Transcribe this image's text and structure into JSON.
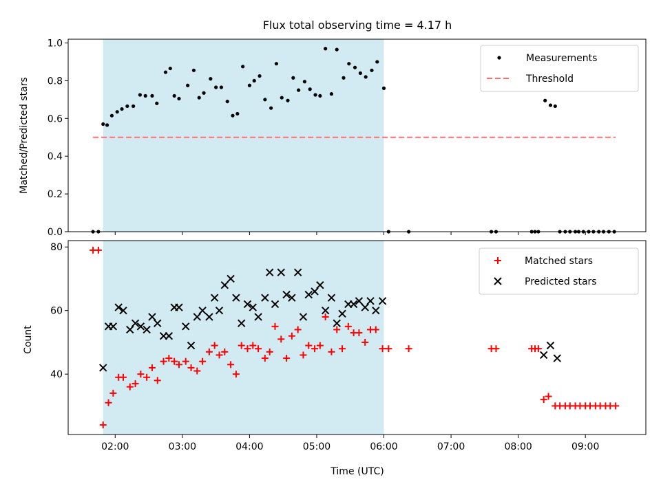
{
  "title": "Flux total observing time = 4.17 h",
  "colors": {
    "shade": "#add8e6",
    "threshold": "#ff6f6f",
    "matched": "#ff0000",
    "predicted": "#000000",
    "measurement": "#000000"
  },
  "chart_data": [
    {
      "type": "scatter",
      "ylabel": "Matched/Predicted stars",
      "xlim": [
        1.3,
        9.9
      ],
      "ylim": [
        0,
        1.02
      ],
      "yticks": [
        0.0,
        0.2,
        0.4,
        0.6,
        0.8,
        1.0
      ],
      "ytick_labels": [
        "0.0",
        "0.2",
        "0.4",
        "0.6",
        "0.8",
        "1.0"
      ],
      "shaded_span": [
        1.82,
        6.0
      ],
      "legend": {
        "position": "upper right",
        "entries": [
          "Measurements",
          "Threshold"
        ]
      },
      "threshold": {
        "name": "Threshold",
        "value": 0.5,
        "x_range": [
          1.67,
          9.45
        ],
        "style": "dashed"
      },
      "series": [
        {
          "name": "Measurements",
          "marker": "dot",
          "points": [
            [
              1.67,
              0.0
            ],
            [
              1.75,
              0.0
            ],
            [
              1.82,
              0.57
            ],
            [
              1.88,
              0.565
            ],
            [
              1.95,
              0.615
            ],
            [
              2.03,
              0.635
            ],
            [
              2.1,
              0.65
            ],
            [
              2.18,
              0.665
            ],
            [
              2.27,
              0.665
            ],
            [
              2.37,
              0.725
            ],
            [
              2.45,
              0.72
            ],
            [
              2.55,
              0.72
            ],
            [
              2.62,
              0.68
            ],
            [
              2.75,
              0.845
            ],
            [
              2.82,
              0.865
            ],
            [
              2.88,
              0.72
            ],
            [
              2.95,
              0.705
            ],
            [
              3.08,
              0.775
            ],
            [
              3.17,
              0.855
            ],
            [
              3.25,
              0.71
            ],
            [
              3.32,
              0.735
            ],
            [
              3.42,
              0.81
            ],
            [
              3.5,
              0.765
            ],
            [
              3.58,
              0.765
            ],
            [
              3.67,
              0.69
            ],
            [
              3.75,
              0.615
            ],
            [
              3.82,
              0.625
            ],
            [
              3.9,
              0.875
            ],
            [
              4.0,
              0.775
            ],
            [
              4.07,
              0.8
            ],
            [
              4.15,
              0.825
            ],
            [
              4.23,
              0.7
            ],
            [
              4.32,
              0.655
            ],
            [
              4.4,
              0.89
            ],
            [
              4.48,
              0.71
            ],
            [
              4.57,
              0.695
            ],
            [
              4.65,
              0.815
            ],
            [
              4.73,
              0.75
            ],
            [
              4.82,
              0.795
            ],
            [
              4.9,
              0.755
            ],
            [
              4.98,
              0.725
            ],
            [
              5.05,
              0.72
            ],
            [
              5.13,
              0.97
            ],
            [
              5.22,
              0.73
            ],
            [
              5.3,
              0.965
            ],
            [
              5.4,
              0.815
            ],
            [
              5.48,
              0.89
            ],
            [
              5.57,
              0.87
            ],
            [
              5.65,
              0.84
            ],
            [
              5.73,
              0.82
            ],
            [
              5.82,
              0.855
            ],
            [
              5.9,
              0.9
            ],
            [
              6.0,
              0.76
            ],
            [
              6.07,
              0.0
            ],
            [
              6.37,
              0.0
            ],
            [
              7.6,
              0.0
            ],
            [
              7.67,
              0.0
            ],
            [
              8.2,
              0.0
            ],
            [
              8.25,
              0.0
            ],
            [
              8.3,
              0.0
            ],
            [
              8.4,
              0.695
            ],
            [
              8.48,
              0.67
            ],
            [
              8.55,
              0.665
            ],
            [
              8.62,
              0.0
            ],
            [
              8.7,
              0.0
            ],
            [
              8.77,
              0.0
            ],
            [
              8.85,
              0.0
            ],
            [
              8.9,
              0.0
            ],
            [
              8.97,
              0.0
            ],
            [
              9.05,
              0.0
            ],
            [
              9.12,
              0.0
            ],
            [
              9.2,
              0.0
            ],
            [
              9.27,
              0.0
            ],
            [
              9.35,
              0.0
            ],
            [
              9.43,
              0.0
            ]
          ]
        }
      ]
    },
    {
      "type": "scatter",
      "xlabel": "Time (UTC)",
      "ylabel": "Count",
      "xlim": [
        1.3,
        9.9
      ],
      "ylim": [
        21,
        82
      ],
      "yticks": [
        40,
        60,
        80
      ],
      "ytick_labels": [
        "40",
        "60",
        "80"
      ],
      "xticks": [
        2,
        3,
        4,
        5,
        6,
        7,
        8,
        9
      ],
      "xtick_labels": [
        "02:00",
        "03:00",
        "04:00",
        "05:00",
        "06:00",
        "07:00",
        "08:00",
        "09:00"
      ],
      "shaded_span": [
        1.82,
        6.0
      ],
      "legend": {
        "position": "upper right",
        "entries": [
          "Matched stars",
          "Predicted stars"
        ]
      },
      "series": [
        {
          "name": "Matched stars",
          "marker": "plus",
          "points": [
            [
              1.67,
              79
            ],
            [
              1.75,
              79
            ],
            [
              1.82,
              24
            ],
            [
              1.9,
              31
            ],
            [
              1.97,
              34
            ],
            [
              2.05,
              39
            ],
            [
              2.12,
              39
            ],
            [
              2.22,
              36
            ],
            [
              2.3,
              37
            ],
            [
              2.38,
              40
            ],
            [
              2.47,
              39
            ],
            [
              2.55,
              42
            ],
            [
              2.63,
              38
            ],
            [
              2.72,
              44
            ],
            [
              2.8,
              45
            ],
            [
              2.88,
              44
            ],
            [
              2.95,
              43
            ],
            [
              3.05,
              44
            ],
            [
              3.13,
              42
            ],
            [
              3.22,
              41
            ],
            [
              3.3,
              44
            ],
            [
              3.4,
              47
            ],
            [
              3.48,
              49
            ],
            [
              3.55,
              46
            ],
            [
              3.63,
              47
            ],
            [
              3.72,
              43
            ],
            [
              3.8,
              40
            ],
            [
              3.88,
              49
            ],
            [
              3.97,
              48
            ],
            [
              4.05,
              49
            ],
            [
              4.13,
              48
            ],
            [
              4.23,
              45
            ],
            [
              4.3,
              47
            ],
            [
              4.38,
              55
            ],
            [
              4.47,
              51
            ],
            [
              4.55,
              45
            ],
            [
              4.63,
              52
            ],
            [
              4.72,
              54
            ],
            [
              4.8,
              46
            ],
            [
              4.88,
              49
            ],
            [
              4.97,
              48
            ],
            [
              5.05,
              49
            ],
            [
              5.13,
              58
            ],
            [
              5.22,
              47
            ],
            [
              5.3,
              54
            ],
            [
              5.38,
              48
            ],
            [
              5.47,
              55
            ],
            [
              5.55,
              53
            ],
            [
              5.63,
              53
            ],
            [
              5.72,
              50
            ],
            [
              5.8,
              54
            ],
            [
              5.88,
              54
            ],
            [
              5.98,
              48
            ],
            [
              6.07,
              48
            ],
            [
              6.37,
              48
            ],
            [
              7.6,
              48
            ],
            [
              7.67,
              48
            ],
            [
              8.2,
              48
            ],
            [
              8.25,
              48
            ],
            [
              8.3,
              48
            ],
            [
              8.38,
              32
            ],
            [
              8.45,
              33
            ],
            [
              8.55,
              30
            ],
            [
              8.62,
              30
            ],
            [
              8.7,
              30
            ],
            [
              8.77,
              30
            ],
            [
              8.85,
              30
            ],
            [
              8.92,
              30
            ],
            [
              9.0,
              30
            ],
            [
              9.07,
              30
            ],
            [
              9.15,
              30
            ],
            [
              9.22,
              30
            ],
            [
              9.3,
              30
            ],
            [
              9.37,
              30
            ],
            [
              9.45,
              30
            ]
          ]
        },
        {
          "name": "Predicted stars",
          "marker": "x",
          "points": [
            [
              1.82,
              42
            ],
            [
              1.9,
              55
            ],
            [
              1.97,
              55
            ],
            [
              2.05,
              61
            ],
            [
              2.12,
              60
            ],
            [
              2.22,
              54
            ],
            [
              2.3,
              56
            ],
            [
              2.38,
              55
            ],
            [
              2.47,
              54
            ],
            [
              2.55,
              58
            ],
            [
              2.63,
              56
            ],
            [
              2.72,
              52
            ],
            [
              2.8,
              52
            ],
            [
              2.88,
              61
            ],
            [
              2.95,
              61
            ],
            [
              3.05,
              55
            ],
            [
              3.13,
              49
            ],
            [
              3.22,
              58
            ],
            [
              3.3,
              60
            ],
            [
              3.4,
              58
            ],
            [
              3.48,
              64
            ],
            [
              3.55,
              60
            ],
            [
              3.63,
              68
            ],
            [
              3.72,
              70
            ],
            [
              3.8,
              64
            ],
            [
              3.88,
              56
            ],
            [
              3.97,
              62
            ],
            [
              4.05,
              61
            ],
            [
              4.13,
              58
            ],
            [
              4.23,
              64
            ],
            [
              4.3,
              72
            ],
            [
              4.38,
              62
            ],
            [
              4.47,
              72
            ],
            [
              4.55,
              65
            ],
            [
              4.63,
              64
            ],
            [
              4.72,
              72
            ],
            [
              4.8,
              58
            ],
            [
              4.88,
              65
            ],
            [
              4.97,
              66
            ],
            [
              5.05,
              68
            ],
            [
              5.13,
              60
            ],
            [
              5.22,
              64
            ],
            [
              5.3,
              56
            ],
            [
              5.38,
              59
            ],
            [
              5.47,
              62
            ],
            [
              5.55,
              62
            ],
            [
              5.63,
              63
            ],
            [
              5.72,
              61
            ],
            [
              5.8,
              63
            ],
            [
              5.88,
              60
            ],
            [
              5.98,
              63
            ],
            [
              8.38,
              46
            ],
            [
              8.48,
              49
            ],
            [
              8.58,
              45
            ]
          ]
        }
      ]
    }
  ]
}
